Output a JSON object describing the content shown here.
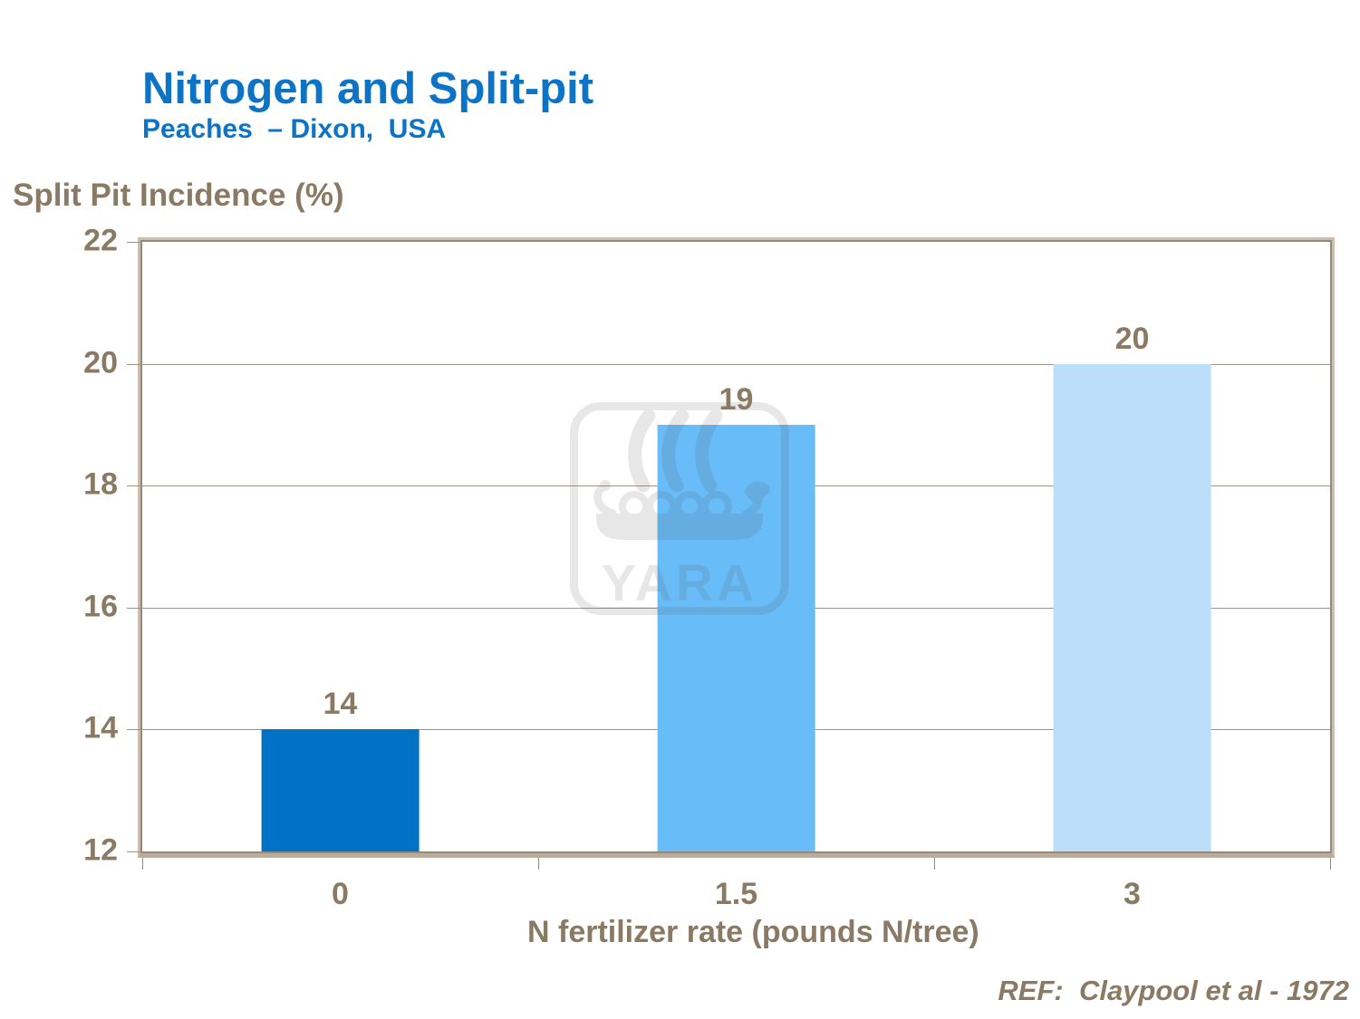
{
  "slide": {
    "title": "Nitrogen and Split-pit",
    "subtitle": "Peaches  – Dixon,  USA",
    "reference": "REF:  Claypool et al - 1972",
    "watermark_text": "YARA"
  },
  "chart_data": {
    "type": "bar",
    "title": "Nitrogen and Split-pit",
    "subtitle": "Peaches – Dixon, USA",
    "categories": [
      "0",
      "1.5",
      "3"
    ],
    "values": [
      14,
      19,
      20
    ],
    "bar_colors": [
      "#0072C6",
      "#68BCF7",
      "#BBDEF9"
    ],
    "xlabel": "N fertilizer rate (pounds N/tree)",
    "ylabel": "Split Pit Incidence (%)",
    "ylim": [
      12,
      22
    ],
    "yticks": [
      12,
      14,
      16,
      18,
      20,
      22
    ],
    "grid": true,
    "legend_position": "none",
    "bar_width_fraction": 0.4,
    "value_labels_shown": true
  },
  "palette": {
    "blue": "#0D73C5",
    "taupe": "#8A7A63",
    "grid": "#A29282",
    "axis_dark": "#95887A",
    "axis_light": "#CBBFB2",
    "axis_band": "#B9AC9E",
    "watermark": "#555555",
    "watermark_opacity": "0.135"
  }
}
